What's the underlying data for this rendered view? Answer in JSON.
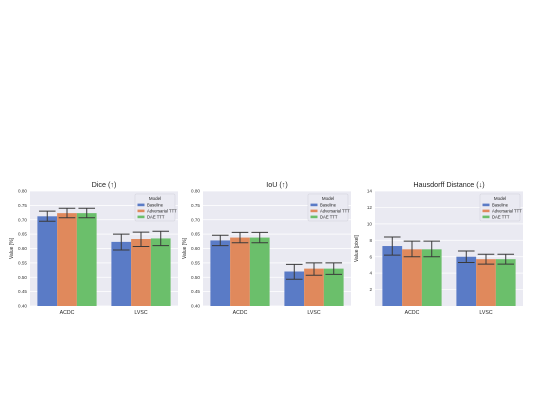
{
  "chart_data": [
    {
      "type": "bar",
      "title": "Dice (↑)",
      "ylabel": "Value [%]",
      "xlabel": "",
      "ylim": [
        0.4,
        0.8
      ],
      "yticks": [
        "0.40",
        "0.45",
        "0.50",
        "0.55",
        "0.60",
        "0.65",
        "0.70",
        "0.75",
        "0.80"
      ],
      "categories": [
        "ACDC",
        "LVSC"
      ],
      "legend_title": "Model",
      "legend_position": "top-right",
      "grid": true,
      "series": [
        {
          "name": "Baseline",
          "values": [
            0.712,
            0.623
          ],
          "err_low": [
            0.695,
            0.595
          ],
          "err_high": [
            0.73,
            0.65
          ]
        },
        {
          "name": "Adversarial TTT",
          "values": [
            0.723,
            0.633
          ],
          "err_low": [
            0.707,
            0.607
          ],
          "err_high": [
            0.74,
            0.657
          ]
        },
        {
          "name": "DAE TTT",
          "values": [
            0.723,
            0.635
          ],
          "err_low": [
            0.707,
            0.61
          ],
          "err_high": [
            0.74,
            0.66
          ]
        }
      ]
    },
    {
      "type": "bar",
      "title": "IoU (↑)",
      "ylabel": "Value [%]",
      "xlabel": "",
      "ylim": [
        0.4,
        0.8
      ],
      "yticks": [
        "0.40",
        "0.45",
        "0.50",
        "0.55",
        "0.60",
        "0.65",
        "0.70",
        "0.75",
        "0.80"
      ],
      "categories": [
        "ACDC",
        "LVSC"
      ],
      "legend_title": "Model",
      "legend_position": "top-right",
      "grid": true,
      "series": [
        {
          "name": "Baseline",
          "values": [
            0.628,
            0.52
          ],
          "err_low": [
            0.61,
            0.493
          ],
          "err_high": [
            0.646,
            0.545
          ]
        },
        {
          "name": "Adversarial TTT",
          "values": [
            0.638,
            0.53
          ],
          "err_low": [
            0.62,
            0.507
          ],
          "err_high": [
            0.656,
            0.55
          ]
        },
        {
          "name": "DAE TTT",
          "values": [
            0.638,
            0.53
          ],
          "err_low": [
            0.62,
            0.51
          ],
          "err_high": [
            0.656,
            0.55
          ]
        }
      ]
    },
    {
      "type": "bar",
      "title": "Hausdorff Distance (↓)",
      "ylabel": "Value [pixel]",
      "xlabel": "",
      "ylim": [
        0,
        14
      ],
      "yticks": [
        "2",
        "4",
        "6",
        "8",
        "10",
        "12",
        "14"
      ],
      "categories": [
        "ACDC",
        "LVSC"
      ],
      "legend_title": "Model",
      "legend_position": "top-right",
      "grid": true,
      "series": [
        {
          "name": "Baseline",
          "values": [
            7.3,
            6.0
          ],
          "err_low": [
            6.2,
            5.3
          ],
          "err_high": [
            8.4,
            6.7
          ]
        },
        {
          "name": "Adversarial TTT",
          "values": [
            6.9,
            5.7
          ],
          "err_low": [
            6.0,
            5.1
          ],
          "err_high": [
            7.9,
            6.3
          ]
        },
        {
          "name": "DAE TTT",
          "values": [
            6.9,
            5.7
          ],
          "err_low": [
            6.0,
            5.1
          ],
          "err_high": [
            7.9,
            6.3
          ]
        }
      ]
    }
  ],
  "colors": {
    "series": [
      "#5a7bc6",
      "#e0895c",
      "#6bbf6b"
    ],
    "plot_background": "#eaeaf2",
    "grid": "#ffffff",
    "error_bar": "#3a3a3a"
  }
}
